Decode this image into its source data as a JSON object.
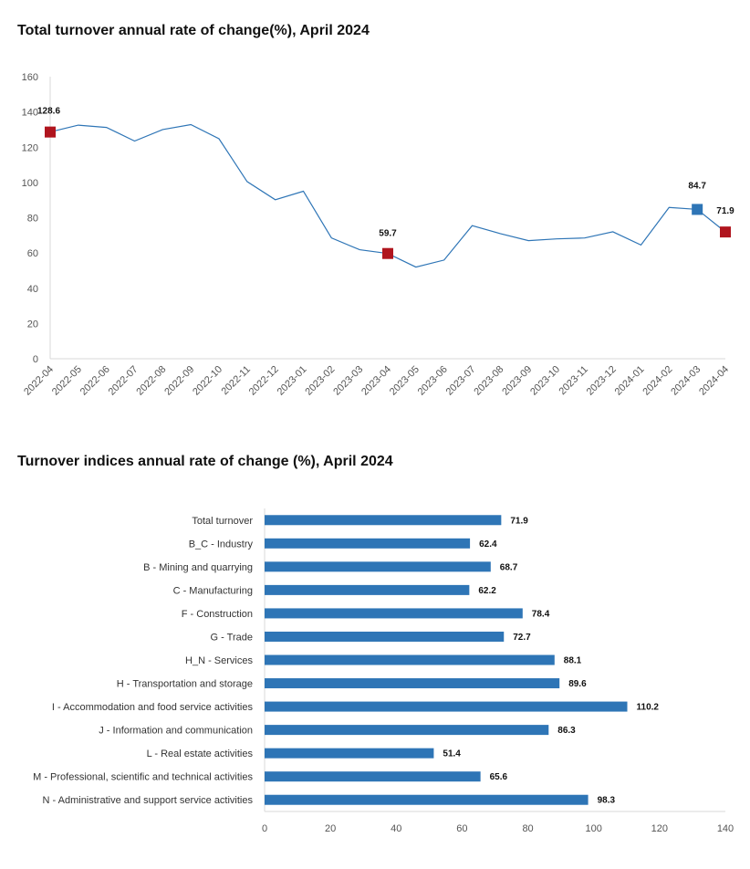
{
  "chart_data": [
    {
      "type": "line",
      "title": "Total turnover annual rate of change(%), April 2024",
      "xlabel": "",
      "ylabel": "",
      "ylim": [
        0,
        160
      ],
      "yticks": [
        0,
        20,
        40,
        60,
        80,
        100,
        120,
        140,
        160
      ],
      "grid": false,
      "x": [
        "2022-04",
        "2022-05",
        "2022-06",
        "2022-07",
        "2022-08",
        "2022-09",
        "2022-10",
        "2022-11",
        "2022-12",
        "2023-01",
        "2023-02",
        "2023-03",
        "2023-04",
        "2023-05",
        "2023-06",
        "2023-07",
        "2023-08",
        "2023-09",
        "2023-10",
        "2023-11",
        "2023-12",
        "2024-01",
        "2024-02",
        "2024-03",
        "2024-04"
      ],
      "series": [
        {
          "values": [
            128.6,
            132.5,
            131.2,
            123.5,
            130,
            132.8,
            124.8,
            100.5,
            90.2,
            95,
            68.5,
            61.8,
            59.7,
            52,
            56,
            75.5,
            71,
            67,
            68,
            68.5,
            72,
            64.5,
            85.8,
            84.7,
            71.9
          ],
          "color": "#2E75B6"
        }
      ],
      "highlighted_points": [
        {
          "x": "2022-04",
          "value": 128.6,
          "label": "128.6",
          "color": "#B0151E"
        },
        {
          "x": "2023-04",
          "value": 59.7,
          "label": "59.7",
          "color": "#B0151E"
        },
        {
          "x": "2024-03",
          "value": 84.7,
          "label": "84.7",
          "color": "#2E75B6"
        },
        {
          "x": "2024-04",
          "value": 71.9,
          "label": "71.9",
          "color": "#B0151E"
        }
      ]
    },
    {
      "type": "bar",
      "orientation": "horizontal",
      "title": "Turnover indices annual rate of change (%), April 2024",
      "xlabel": "",
      "ylabel": "",
      "xlim": [
        0,
        140
      ],
      "xticks": [
        0,
        20,
        40,
        60,
        80,
        100,
        120,
        140
      ],
      "grid": false,
      "categories": [
        "Total turnover",
        "B_C - Industry",
        "B - Mining and quarrying",
        "C - Manufacturing",
        "F - Construction",
        "G - Trade",
        "H_N - Services",
        "H - Transportation and storage",
        "I - Accommodation and food service activities",
        "J - Information and communication",
        "L - Real estate activities",
        "M - Professional, scientific and technical activities",
        "N - Administrative and support service activities"
      ],
      "values": [
        71.9,
        62.4,
        68.7,
        62.2,
        78.4,
        72.7,
        88.1,
        89.6,
        110.2,
        86.3,
        51.4,
        65.6,
        98.3
      ],
      "value_labels": [
        "71.9",
        "62.4",
        "68.7",
        "62.2",
        "78.4",
        "72.7",
        "88.1",
        "89.6",
        "110.2",
        "86.3",
        "51.4",
        "65.6",
        "98.3"
      ],
      "color": "#2E75B6"
    }
  ]
}
